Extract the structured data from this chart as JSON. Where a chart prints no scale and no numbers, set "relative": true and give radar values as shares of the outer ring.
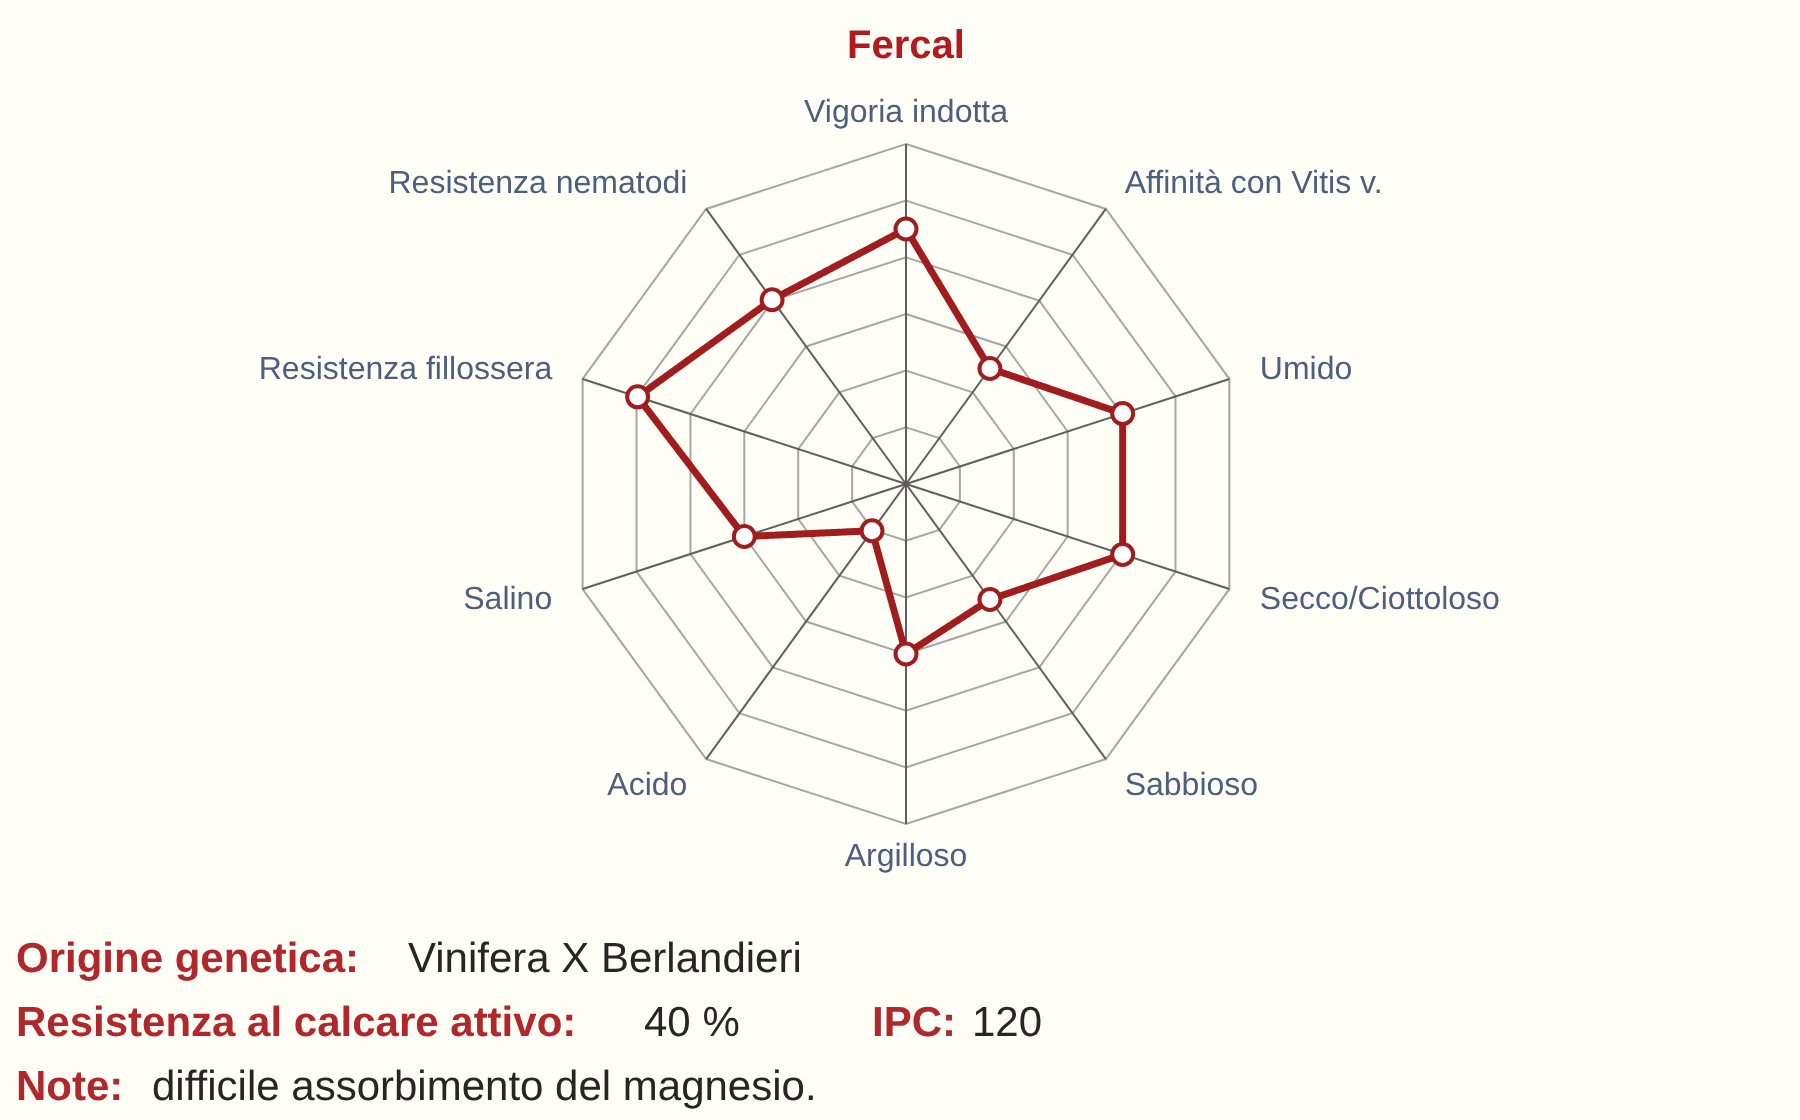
{
  "chart_data": {
    "type": "radar",
    "title": "Fercal",
    "categories": [
      "Vigoria indotta",
      "Affinità con Vitis v.",
      "Umido",
      "Secco/Ciottoloso",
      "Sabbioso",
      "Argilloso",
      "Acido",
      "Salino",
      "Resistenza fillossera",
      "Resistenza nematodi"
    ],
    "relative": true,
    "grid": true,
    "marker": "circle",
    "line_style": "solid",
    "series": [
      {
        "color": "#a11d1d",
        "values": [
          0.75,
          0.42,
          0.67,
          0.67,
          0.42,
          0.5,
          0.17,
          0.5,
          0.83,
          0.67
        ]
      }
    ],
    "annotations": [
      "Origine genetica:",
      "Vinifera X Berlandieri",
      "Resistenza al calcare attivo:",
      "40 %",
      "IPC:",
      "120",
      "Note:",
      "difficile assorbimento del magnesio."
    ]
  }
}
